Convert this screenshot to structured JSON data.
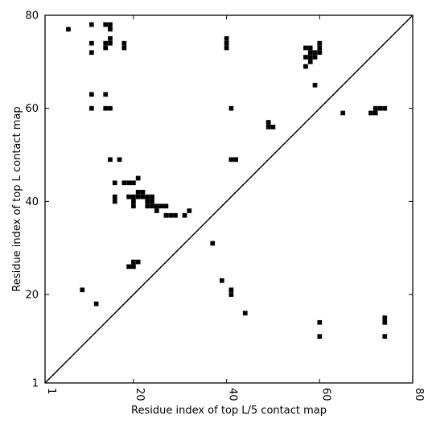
{
  "chart_data": {
    "type": "scatter",
    "xlabel": "Residue index of top L/5 contact map",
    "ylabel": "Residue index of top L contact map",
    "xlim": [
      1,
      80
    ],
    "ylim": [
      1,
      80
    ],
    "x_ticks": [
      1,
      20,
      40,
      60,
      80
    ],
    "y_ticks": [
      1,
      20,
      40,
      60,
      80
    ],
    "x_tick_labels": [
      "1",
      "20",
      "40",
      "60",
      "80"
    ],
    "y_tick_labels": [
      "1",
      "20",
      "40",
      "60",
      "80"
    ],
    "diagonal": true,
    "grid": false,
    "marker": "square",
    "color": "#000000",
    "points": [
      [
        6,
        77
      ],
      [
        11,
        78
      ],
      [
        11,
        74
      ],
      [
        11,
        72
      ],
      [
        11,
        63
      ],
      [
        11,
        60
      ],
      [
        14,
        78
      ],
      [
        15,
        78
      ],
      [
        15,
        77
      ],
      [
        14,
        74
      ],
      [
        15,
        74
      ],
      [
        15,
        75
      ],
      [
        14,
        73
      ],
      [
        14,
        63
      ],
      [
        14,
        60
      ],
      [
        15,
        60
      ],
      [
        18,
        74
      ],
      [
        18,
        73
      ],
      [
        40,
        75
      ],
      [
        40,
        74
      ],
      [
        40,
        73
      ],
      [
        41,
        60
      ],
      [
        41,
        49
      ],
      [
        42,
        49
      ],
      [
        15,
        49
      ],
      [
        17,
        49
      ],
      [
        16,
        44
      ],
      [
        18,
        44
      ],
      [
        19,
        44
      ],
      [
        20,
        44
      ],
      [
        21,
        45
      ],
      [
        16,
        41
      ],
      [
        16,
        40
      ],
      [
        19,
        41
      ],
      [
        20,
        41
      ],
      [
        21,
        41
      ],
      [
        22,
        41
      ],
      [
        23,
        41
      ],
      [
        24,
        41
      ],
      [
        21,
        42
      ],
      [
        22,
        42
      ],
      [
        20,
        40
      ],
      [
        20,
        39
      ],
      [
        23,
        40
      ],
      [
        24,
        40
      ],
      [
        23,
        39
      ],
      [
        24,
        39
      ],
      [
        25,
        39
      ],
      [
        26,
        39
      ],
      [
        27,
        39
      ],
      [
        25,
        38
      ],
      [
        27,
        37
      ],
      [
        28,
        37
      ],
      [
        29,
        37
      ],
      [
        31,
        37
      ],
      [
        32,
        38
      ],
      [
        37,
        31
      ],
      [
        39,
        23
      ],
      [
        41,
        21
      ],
      [
        41,
        20
      ],
      [
        44,
        16
      ],
      [
        19,
        26
      ],
      [
        20,
        26
      ],
      [
        20,
        27
      ],
      [
        21,
        27
      ],
      [
        9,
        21
      ],
      [
        12,
        18
      ],
      [
        49,
        57
      ],
      [
        49,
        56
      ],
      [
        50,
        56
      ],
      [
        57,
        73
      ],
      [
        58,
        73
      ],
      [
        58,
        72
      ],
      [
        59,
        72
      ],
      [
        60,
        74
      ],
      [
        60,
        73
      ],
      [
        60,
        72
      ],
      [
        58,
        71
      ],
      [
        59,
        71
      ],
      [
        57,
        71
      ],
      [
        58,
        70
      ],
      [
        57,
        69
      ],
      [
        59,
        65
      ],
      [
        65,
        59
      ],
      [
        71,
        59
      ],
      [
        72,
        59
      ],
      [
        72,
        60
      ],
      [
        73,
        60
      ],
      [
        74,
        60
      ],
      [
        60,
        14
      ],
      [
        60,
        11
      ],
      [
        74,
        15
      ],
      [
        74,
        14
      ],
      [
        74,
        11
      ]
    ]
  }
}
